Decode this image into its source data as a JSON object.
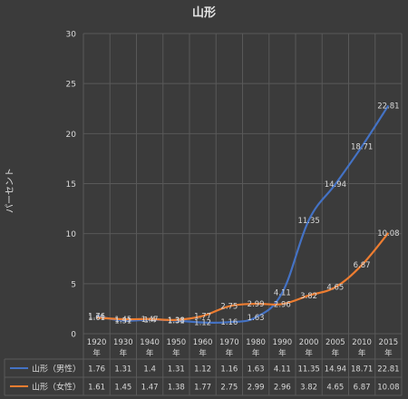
{
  "chart_data": {
    "type": "line",
    "title": "山形",
    "ylabel": "パーセント",
    "xlabel": "",
    "ylim": [
      0,
      30
    ],
    "yticks": [
      0,
      5,
      10,
      15,
      20,
      25,
      30
    ],
    "grid": true,
    "legend": "data-table",
    "categories": [
      [
        "1920",
        "年"
      ],
      [
        "1930",
        "年"
      ],
      [
        "1940",
        "年"
      ],
      [
        "1950",
        "年"
      ],
      [
        "1960",
        "年"
      ],
      [
        "1970",
        "年"
      ],
      [
        "1980",
        "年"
      ],
      [
        "1990",
        "年"
      ],
      [
        "2000",
        "年"
      ],
      [
        "2005",
        "年"
      ],
      [
        "2010",
        "年"
      ],
      [
        "2015",
        "年"
      ]
    ],
    "series": [
      {
        "name": "山形（男性）",
        "color": "#4472c4",
        "values": [
          1.76,
          1.31,
          1.4,
          1.31,
          1.12,
          1.16,
          1.63,
          4.11,
          11.35,
          14.94,
          18.71,
          22.81
        ]
      },
      {
        "name": "山形（女性）",
        "color": "#ed7d31",
        "values": [
          1.61,
          1.45,
          1.47,
          1.38,
          1.77,
          2.75,
          2.99,
          2.96,
          3.82,
          4.65,
          6.87,
          10.08
        ]
      }
    ]
  },
  "colors": {
    "background": "#3b3b3b",
    "grid": "#595959",
    "text": "#d9d9d9"
  }
}
